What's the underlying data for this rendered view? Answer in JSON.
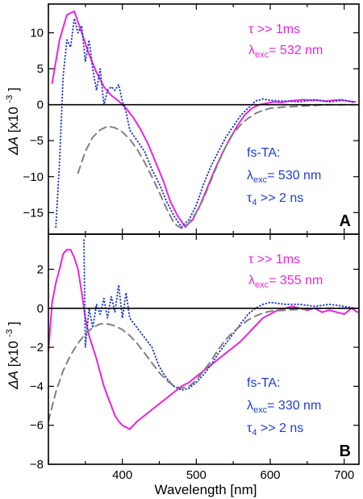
{
  "figure": {
    "xlabel": "Wavelength [nm]",
    "ylabel_main": "ΔA",
    "ylabel_unit_base": "[x10",
    "ylabel_unit_exp": "-3",
    "ylabel_unit_end": "]"
  },
  "colors": {
    "magenta": "#ee22dd",
    "blue": "#1f3bd6",
    "gray": "#808080",
    "black": "#000000"
  },
  "chart_data": [
    {
      "type": "line",
      "panel_label": "A",
      "xlim": [
        300,
        720
      ],
      "ylim": [
        -18,
        14
      ],
      "x_ticks": [
        400,
        500,
        600,
        700
      ],
      "y_ticks": [
        -15,
        -10,
        -5,
        0,
        5,
        10
      ],
      "grid": false,
      "zero_line": true,
      "annotation_top": {
        "tau": "τ >> 1ms",
        "lambda": "λ",
        "sub": "exc",
        "value": "= 532 nm"
      },
      "annotation_bottom": {
        "title": "fs-TA:",
        "lambda": "λ",
        "sub": "exc",
        "value": "= 530 nm",
        "tau": "τ",
        "tau_sub": "4",
        "tau_value": " >> 2 ns"
      },
      "series": [
        {
          "style": "solid",
          "color": "#ee22dd",
          "x": [
            305,
            315,
            325,
            335,
            345,
            355,
            365,
            375,
            385,
            395,
            405,
            415,
            425,
            435,
            445,
            455,
            465,
            475,
            485,
            495,
            505,
            515,
            525,
            535,
            545,
            555,
            565,
            575,
            585,
            595,
            605,
            615,
            625,
            635,
            645,
            655,
            665,
            675,
            685,
            695,
            705,
            715
          ],
          "y": [
            3,
            9,
            12.5,
            13,
            10,
            7,
            4.5,
            2.5,
            1.3,
            0.5,
            -0.5,
            -1.8,
            -3.5,
            -5.5,
            -8,
            -10.5,
            -13.5,
            -15.5,
            -17,
            -16,
            -14,
            -11.5,
            -9,
            -6.8,
            -4.8,
            -3,
            -1.5,
            -0.5,
            0,
            0.2,
            0.4,
            0.3,
            0.5,
            0.6,
            0.7,
            0.6,
            0.6,
            0.5,
            0.6,
            0.7,
            0.5,
            0.4
          ]
        },
        {
          "style": "dotted",
          "color": "#1f3bd6",
          "x": [
            310,
            315,
            320,
            325,
            330,
            335,
            340,
            345,
            350,
            355,
            360,
            365,
            370,
            375,
            380,
            385,
            390,
            395,
            400,
            405,
            410,
            420,
            430,
            440,
            450,
            460,
            470,
            480,
            490,
            500,
            510,
            520,
            530,
            540,
            550,
            560,
            570,
            580,
            590,
            600,
            620,
            640,
            660,
            680,
            700,
            715
          ],
          "y": [
            -17,
            -8,
            4,
            9,
            8,
            12,
            10,
            11,
            6,
            9,
            5,
            2,
            5,
            0,
            2,
            2.5,
            2,
            2.8,
            0.5,
            -1,
            -3.5,
            -5,
            -6.5,
            -9,
            -11,
            -13.5,
            -15.5,
            -17,
            -16,
            -14,
            -11,
            -8.5,
            -6.5,
            -4.5,
            -3,
            -1.5,
            -0.5,
            0.5,
            0.8,
            0.6,
            0.5,
            0.4,
            0.7,
            0.4,
            0.6,
            0.3
          ]
        },
        {
          "style": "dashed",
          "color": "#808080",
          "x": [
            340,
            350,
            360,
            370,
            380,
            390,
            400,
            410,
            420,
            430,
            440,
            450,
            460,
            470,
            480,
            490,
            500,
            510,
            520,
            530,
            540,
            550,
            560,
            570,
            580,
            590,
            600,
            620,
            640,
            660,
            680,
            700,
            715
          ],
          "y": [
            -9.5,
            -6.5,
            -4.5,
            -3.5,
            -3,
            -3.2,
            -3.8,
            -4.8,
            -6.2,
            -8,
            -10,
            -12.2,
            -14.5,
            -16.5,
            -17.2,
            -16.5,
            -15,
            -13,
            -10.5,
            -8,
            -5.8,
            -4,
            -2.8,
            -1.9,
            -1.2,
            -0.8,
            -0.5,
            -0.3,
            -0.2,
            -0.1,
            0,
            0,
            0
          ]
        }
      ]
    },
    {
      "type": "line",
      "panel_label": "B",
      "xlim": [
        300,
        720
      ],
      "ylim": [
        -8,
        3.8
      ],
      "x_ticks": [
        400,
        500,
        600,
        700
      ],
      "x_tick_labels": [
        "400",
        "500",
        "600",
        "700"
      ],
      "y_ticks": [
        -8,
        -6,
        -4,
        -2,
        0,
        2
      ],
      "grid": false,
      "zero_line": true,
      "annotation_top": {
        "tau": "τ >> 1ms",
        "lambda": "λ",
        "sub": "exc",
        "value": "= 355 nm"
      },
      "annotation_bottom": {
        "title": "fs-TA:",
        "lambda": "λ",
        "sub": "exc",
        "value": "= 330 nm",
        "tau": "τ",
        "tau_sub": "4",
        "tau_value": " >> 2 ns"
      },
      "series": [
        {
          "style": "solid",
          "color": "#ee22dd",
          "x": [
            300,
            305,
            310,
            315,
            320,
            325,
            330,
            335,
            340,
            345,
            350,
            355,
            360,
            365,
            370,
            375,
            380,
            385,
            390,
            395,
            400,
            405,
            410,
            415,
            420,
            430,
            440,
            450,
            460,
            470,
            480,
            490,
            500,
            510,
            520,
            530,
            540,
            550,
            560,
            570,
            580,
            590,
            600,
            610,
            620,
            630,
            640,
            650,
            660,
            670,
            680,
            690,
            700,
            710,
            718
          ],
          "y": [
            -2.2,
            0.3,
            1.3,
            2,
            2.8,
            3,
            3,
            2.6,
            2,
            0.8,
            -0.5,
            -1.4,
            -2,
            -2.6,
            -3.3,
            -4,
            -4.5,
            -5,
            -5.5,
            -5.8,
            -6,
            -6.1,
            -6.2,
            -6,
            -5.8,
            -5.5,
            -5.2,
            -4.9,
            -4.6,
            -4.3,
            -4,
            -3.8,
            -3.5,
            -3.2,
            -2.9,
            -2.6,
            -2.3,
            -2,
            -1.7,
            -1.3,
            -0.9,
            -0.5,
            -0.3,
            -0.1,
            0,
            0.1,
            0,
            -0.1,
            0,
            -0.2,
            -0.1,
            -0.2,
            -0.3,
            0,
            -0.2
          ]
        },
        {
          "style": "dotted",
          "color": "#1f3bd6",
          "x": [
            348,
            350,
            355,
            360,
            365,
            370,
            375,
            380,
            385,
            390,
            395,
            400,
            405,
            410,
            420,
            430,
            440,
            450,
            460,
            470,
            480,
            490,
            500,
            510,
            520,
            530,
            540,
            550,
            560,
            570,
            580,
            590,
            600,
            620,
            640,
            660,
            680,
            700,
            715
          ],
          "y": [
            3.5,
            -2,
            0,
            -1,
            0.2,
            -0.3,
            0.5,
            -0.5,
            0.6,
            -0.2,
            1.2,
            -0.5,
            0.8,
            -0.5,
            -1,
            -1.5,
            -2,
            -3,
            -3.6,
            -4,
            -4.2,
            -4.1,
            -3.8,
            -3.4,
            -2.9,
            -2.3,
            -1.8,
            -1.3,
            -0.8,
            -0.3,
            0,
            0.2,
            0.3,
            0.2,
            0.2,
            0.1,
            0.2,
            0.1,
            0
          ]
        },
        {
          "style": "dashed",
          "color": "#808080",
          "x": [
            300,
            310,
            320,
            330,
            340,
            350,
            360,
            370,
            380,
            390,
            400,
            410,
            420,
            430,
            440,
            450,
            460,
            470,
            480,
            490,
            500,
            510,
            520,
            530,
            540,
            550,
            560,
            570,
            580,
            590,
            600,
            620,
            640,
            660,
            680,
            700,
            715
          ],
          "y": [
            -5.8,
            -4.3,
            -3.2,
            -2.4,
            -1.8,
            -1.3,
            -1,
            -0.8,
            -0.8,
            -0.9,
            -1.1,
            -1.4,
            -1.8,
            -2.3,
            -2.8,
            -3.3,
            -3.7,
            -4,
            -4.1,
            -4,
            -3.7,
            -3.2,
            -2.7,
            -2.1,
            -1.6,
            -1.2,
            -0.9,
            -0.6,
            -0.4,
            -0.25,
            -0.15,
            -0.1,
            -0.05,
            0,
            0,
            0,
            0
          ]
        }
      ]
    }
  ]
}
